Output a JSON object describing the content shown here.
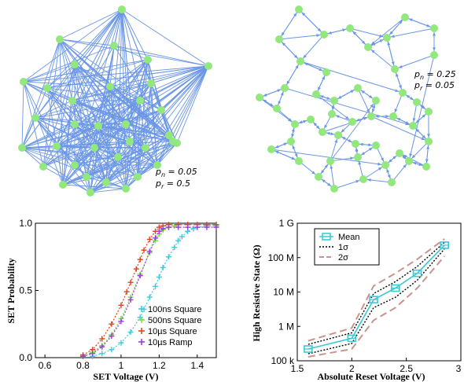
{
  "networks": [
    {
      "pn_label": "p",
      "pn_sub": "n",
      "pn_val": " = 0.05",
      "pr_label": "p",
      "pr_sub": "r",
      "pr_val": " = 0.5"
    },
    {
      "pn_label": "p",
      "pn_sub": "n",
      "pn_val": " = 0.25",
      "pr_label": "p",
      "pr_sub": "r",
      "pr_val": " = 0.05"
    }
  ],
  "colors": {
    "edge": "#6a96e6",
    "node": "#92e87c",
    "purple": "#9a3ce0"
  },
  "chart_data": [
    {
      "type": "scatter",
      "xlabel": "SET Voltage (V)",
      "ylabel": "SET Probability",
      "xlim": [
        0.55,
        1.5
      ],
      "ylim": [
        0,
        1
      ],
      "x_ticks": [
        "0.6",
        "0.8",
        "1",
        "1.2",
        "1.4"
      ],
      "y_ticks": [
        "0.0",
        "0.5",
        "1.0"
      ],
      "legend_position": "bottom-right",
      "series": [
        {
          "name": "100ns Square",
          "color": "#3ec9e0",
          "x": [
            0.85,
            0.9,
            0.95,
            1.0,
            1.05,
            1.1,
            1.12,
            1.15,
            1.18,
            1.2,
            1.22,
            1.25,
            1.28,
            1.3,
            1.32,
            1.35,
            1.38,
            1.4,
            1.45,
            1.5
          ],
          "y": [
            0.01,
            0.03,
            0.06,
            0.11,
            0.19,
            0.3,
            0.36,
            0.45,
            0.53,
            0.6,
            0.67,
            0.75,
            0.82,
            0.87,
            0.9,
            0.94,
            0.96,
            0.97,
            0.98,
            0.98
          ]
        },
        {
          "name": "500ns Square",
          "color": "#6fe43c",
          "x": [
            0.8,
            0.85,
            0.9,
            0.95,
            1.0,
            1.05,
            1.1,
            1.15,
            1.18,
            1.2,
            1.22,
            1.25,
            1.28,
            1.3,
            1.35,
            1.4,
            1.45,
            1.5
          ],
          "y": [
            0.01,
            0.04,
            0.09,
            0.17,
            0.29,
            0.45,
            0.62,
            0.78,
            0.87,
            0.92,
            0.95,
            0.97,
            0.98,
            0.99,
            0.99,
            0.99,
            0.99,
            0.99
          ]
        },
        {
          "name": "10µs Square",
          "color": "#e8401c",
          "x": [
            0.8,
            0.85,
            0.9,
            0.95,
            1.0,
            1.03,
            1.05,
            1.08,
            1.1,
            1.12,
            1.15,
            1.18,
            1.2,
            1.22,
            1.25,
            1.3,
            1.35,
            1.4,
            1.45,
            1.5
          ],
          "y": [
            0.02,
            0.06,
            0.14,
            0.25,
            0.39,
            0.49,
            0.56,
            0.66,
            0.73,
            0.8,
            0.88,
            0.94,
            0.97,
            0.98,
            0.99,
            0.99,
            0.99,
            0.99,
            0.99,
            0.99
          ]
        },
        {
          "name": "10µs Ramp",
          "color": "#9a3ce0",
          "x": [
            0.8,
            0.85,
            0.9,
            0.95,
            1.0,
            1.05,
            1.1,
            1.15,
            1.18,
            1.2,
            1.22,
            1.25,
            1.3,
            1.35,
            1.4,
            1.45,
            1.5
          ],
          "y": [
            0.01,
            0.03,
            0.08,
            0.16,
            0.27,
            0.43,
            0.61,
            0.79,
            0.89,
            0.94,
            0.96,
            0.97,
            0.97,
            0.97,
            0.97,
            0.97,
            0.97
          ]
        }
      ]
    },
    {
      "type": "line",
      "xlabel": "Absolute Reset Voltage (V)",
      "ylabel": "High Resistive State (Ω)",
      "xlim": [
        1.5,
        3.0
      ],
      "y_scale": "log",
      "ylim": [
        100000,
        1000000000
      ],
      "x_ticks": [
        "1.5",
        "2",
        "2.5",
        "3"
      ],
      "y_ticks": [
        "100 k",
        "1 M",
        "10 M",
        "100 M",
        "1 G"
      ],
      "legend_position": "top-left",
      "series": [
        {
          "name": "Mean",
          "color": "#3ec9d6",
          "x": [
            1.6,
            2.0,
            2.2,
            2.4,
            2.6,
            2.85
          ],
          "y": [
            220000,
            450000,
            6000000,
            13000000,
            35000000,
            230000000
          ]
        },
        {
          "name": "1σ",
          "color": "#000000",
          "style": "dotted",
          "upper": {
            "x": [
              1.6,
              2.0,
              2.2,
              2.4,
              2.6,
              2.85
            ],
            "y": [
              300000,
              650000,
              9000000,
              20000000,
              55000000,
              280000000
            ]
          },
          "lower": {
            "x": [
              1.6,
              2.0,
              2.2,
              2.4,
              2.6,
              2.85
            ],
            "y": [
              160000,
              320000,
              3500000,
              7000000,
              22000000,
              180000000
            ]
          }
        },
        {
          "name": "2σ",
          "color": "#c9948e",
          "style": "dashed",
          "upper": {
            "x": [
              1.6,
              2.0,
              2.2,
              2.4,
              2.6,
              2.85
            ],
            "y": [
              380000,
              900000,
              15000000,
              35000000,
              90000000,
              350000000
            ]
          },
          "lower": {
            "x": [
              1.6,
              2.0,
              2.2,
              2.4,
              2.6,
              2.85
            ],
            "y": [
              130000,
              220000,
              1500000,
              3500000,
              13000000,
              110000000
            ]
          }
        }
      ]
    }
  ]
}
